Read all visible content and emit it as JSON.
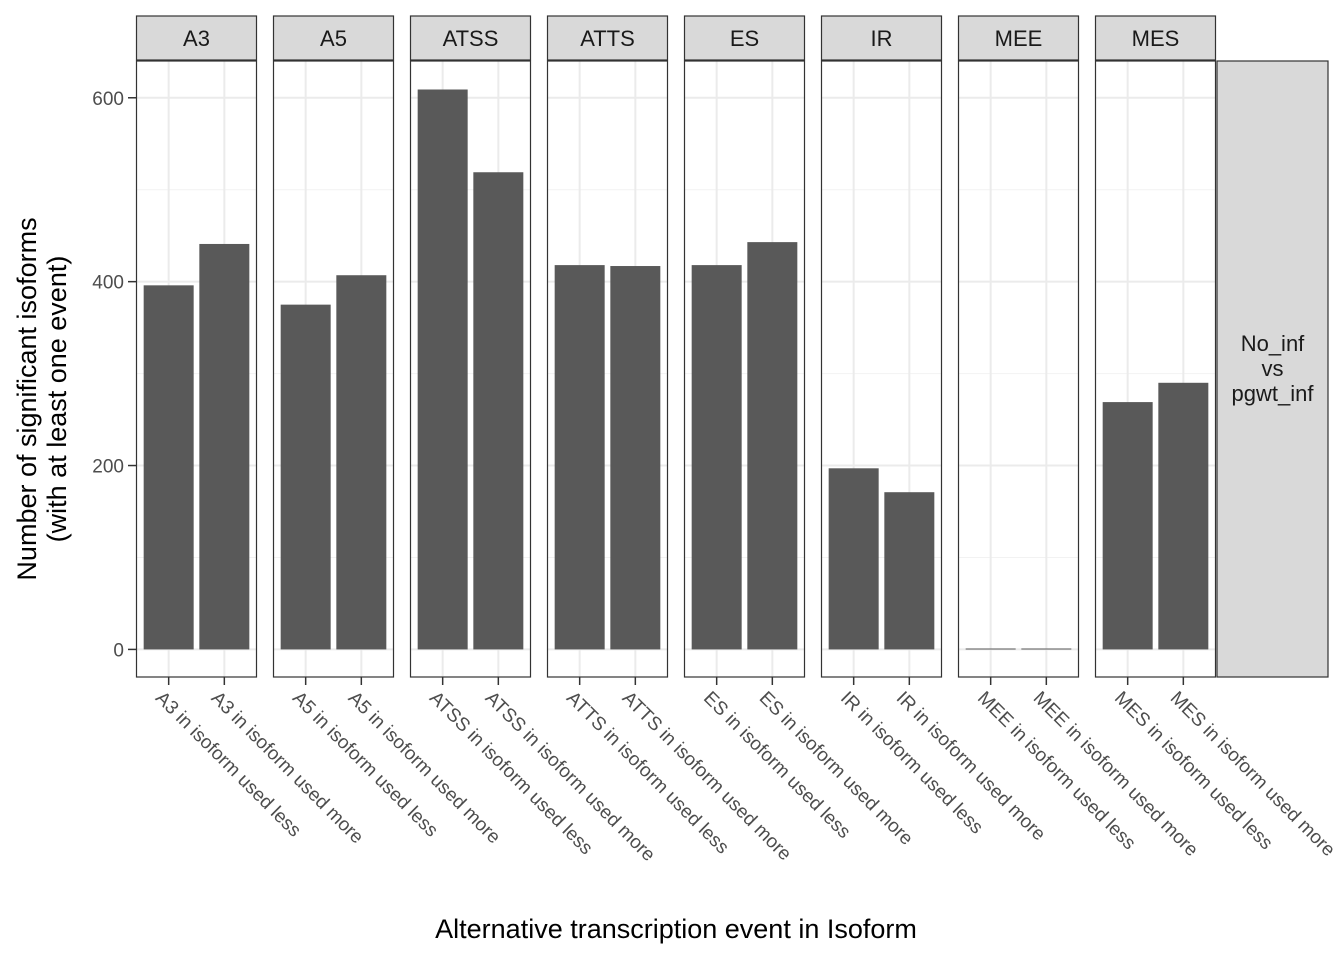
{
  "chart_data": {
    "type": "bar",
    "xlabel": "Alternative transcription event in Isoform",
    "ylabel_lines": [
      "Number of significant isoforms",
      "(with at least one event)"
    ],
    "ylim": [
      -30,
      640
    ],
    "y_ticks": [
      0,
      200,
      400,
      600
    ],
    "grid": true,
    "row_strip_lines": [
      "No_inf",
      "vs",
      "pgwt_inf"
    ],
    "bar_color": "#595959",
    "strip_fill": "#d9d9d9",
    "facets": [
      {
        "label": "A3",
        "categories": [
          "A3 in isoform used less",
          "A3 in isoform used more"
        ],
        "values": [
          396,
          441
        ]
      },
      {
        "label": "A5",
        "categories": [
          "A5 in isoform used less",
          "A5 in isoform used more"
        ],
        "values": [
          375,
          407
        ]
      },
      {
        "label": "ATSS",
        "categories": [
          "ATSS in isoform used less",
          "ATSS in isoform used more"
        ],
        "values": [
          609,
          519
        ]
      },
      {
        "label": "ATTS",
        "categories": [
          "ATTS in isoform used less",
          "ATTS in isoform used more"
        ],
        "values": [
          418,
          417
        ]
      },
      {
        "label": "ES",
        "categories": [
          "ES in isoform used less",
          "ES in isoform used more"
        ],
        "values": [
          418,
          443
        ]
      },
      {
        "label": "IR",
        "categories": [
          "IR in isoform used less",
          "IR in isoform used more"
        ],
        "values": [
          197,
          171
        ]
      },
      {
        "label": "MEE",
        "categories": [
          "MEE in isoform used less",
          "MEE in isoform used more"
        ],
        "values": [
          1,
          1
        ]
      },
      {
        "label": "MES",
        "categories": [
          "MES in isoform used less",
          "MES in isoform used more"
        ],
        "values": [
          269,
          290
        ]
      }
    ]
  }
}
